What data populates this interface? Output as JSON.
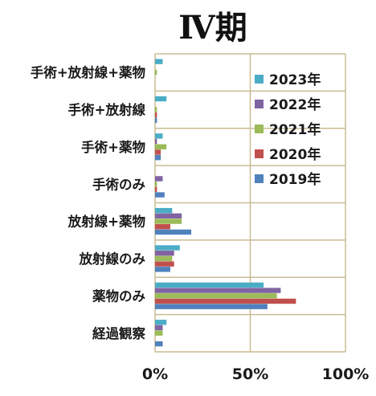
{
  "chart_data": {
    "type": "bar",
    "orientation": "horizontal",
    "title": "Ⅳ期",
    "xlabel": "",
    "ylabel": "",
    "xlim": [
      0,
      100
    ],
    "x_ticks": [
      "0%",
      "50%",
      "100%"
    ],
    "grid": true,
    "legend_position": "top-right",
    "categories": [
      "手術+放射線+薬物",
      "手術+放射線",
      "手術+薬物",
      "手術のみ",
      "放射線+薬物",
      "放射線のみ",
      "薬物のみ",
      "経過観察"
    ],
    "series": [
      {
        "name": "2023年",
        "color": "#4bacc6",
        "values": [
          4,
          6,
          4,
          0,
          9,
          13,
          57,
          6
        ]
      },
      {
        "name": "2022年",
        "color": "#8064a2",
        "values": [
          0,
          0,
          1,
          4,
          14,
          10,
          66,
          4
        ]
      },
      {
        "name": "2021年",
        "color": "#9bbb59",
        "values": [
          1,
          1,
          6,
          1,
          14,
          9,
          64,
          4
        ]
      },
      {
        "name": "2020年",
        "color": "#c0504d",
        "values": [
          0,
          1,
          3,
          1,
          8,
          10,
          74,
          0
        ]
      },
      {
        "name": "2019年",
        "color": "#4f81bd",
        "values": [
          0,
          1,
          3,
          5,
          19,
          8,
          59,
          4
        ]
      }
    ],
    "legend_order": [
      "2023年",
      "2022年",
      "2021年",
      "2020年",
      "2019年"
    ]
  }
}
